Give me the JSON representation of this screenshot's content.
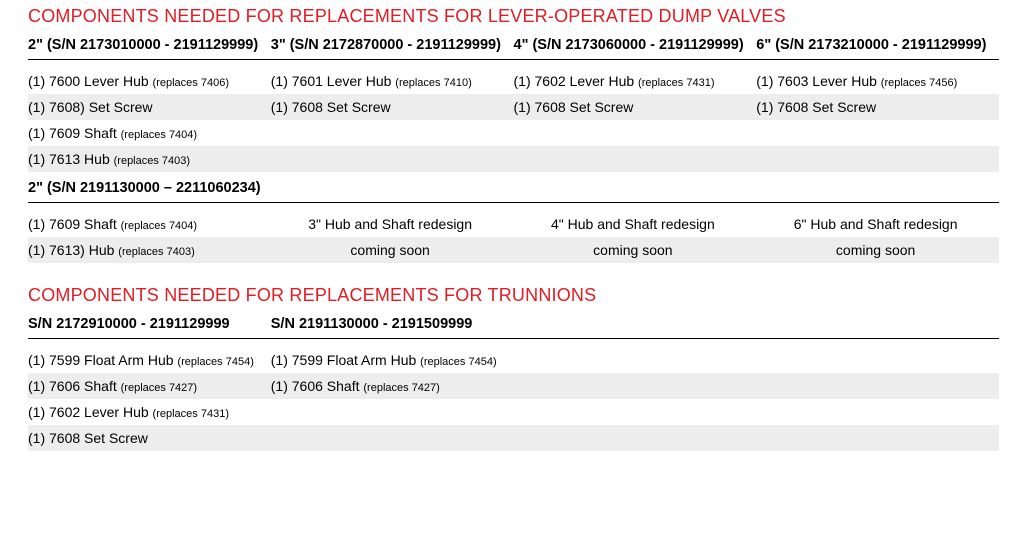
{
  "colors": {
    "title": "#e31b23",
    "border": "#000000",
    "alt_bg": "#ededed",
    "text": "#000000",
    "bg": "#ffffff"
  },
  "fonts": {
    "title_size": 18,
    "header_size": 14.5,
    "body_size": 14,
    "rep_size": 11
  },
  "section1": {
    "title": "COMPONENTS NEEDED FOR REPLACEMENTS FOR LEVER-OPERATED DUMP VALVES",
    "headers": [
      "2\" (S/N 2173010000 - 2191129999)",
      "3\" (S/N 2172870000 - 2191129999)",
      "4\" (S/N 2173060000 - 2191129999)",
      "6\" (S/N 2173210000 - 2191129999)"
    ],
    "rows": [
      [
        {
          "qty": "(1)",
          "name": "7600 Lever Hub",
          "rep": "(replaces 7406)"
        },
        {
          "qty": "(1)",
          "name": "7601 Lever Hub",
          "rep": "(replaces 7410)"
        },
        {
          "qty": "(1)",
          "name": "7602 Lever Hub",
          "rep": "(replaces 7431)"
        },
        {
          "qty": "(1)",
          "name": "7603 Lever Hub",
          "rep": "(replaces 7456)"
        }
      ],
      [
        {
          "qty": "(1)",
          "name": "7608) Set Screw",
          "rep": ""
        },
        {
          "qty": "(1)",
          "name": "7608 Set Screw",
          "rep": ""
        },
        {
          "qty": "(1)",
          "name": "7608 Set Screw",
          "rep": ""
        },
        {
          "qty": "(1)",
          "name": "7608 Set Screw",
          "rep": ""
        }
      ],
      [
        {
          "qty": "(1)",
          "name": "7609 Shaft",
          "rep": "(replaces 7404)"
        },
        null,
        null,
        null
      ],
      [
        {
          "qty": "(1)",
          "name": "7613 Hub",
          "rep": "(replaces 7403)"
        },
        null,
        null,
        null
      ]
    ],
    "subheader": "2\" (S/N 2191130000 – 2211060234)",
    "subrows": {
      "col1": [
        {
          "qty": "(1)",
          "name": "7609 Shaft",
          "rep": "(replaces 7404)"
        },
        {
          "qty": "(1)",
          "name": "7613) Hub",
          "rep": "(replaces 7403)"
        }
      ],
      "msgs": {
        "c2l1": "3\" Hub and Shaft redesign",
        "c2l2": "coming soon",
        "c3l1": "4\" Hub and Shaft redesign",
        "c3l2": "coming soon",
        "c4l1": "6\" Hub and Shaft redesign",
        "c4l2": "coming soon"
      }
    }
  },
  "section2": {
    "title": "COMPONENTS NEEDED FOR REPLACEMENTS FOR TRUNNIONS",
    "headers": [
      "S/N 2172910000 - 2191129999",
      "S/N 2191130000 - 2191509999"
    ],
    "rows": [
      [
        {
          "qty": "(1)",
          "name": "7599 Float Arm Hub",
          "rep": "(replaces 7454)"
        },
        {
          "qty": "(1)",
          "name": "7599 Float Arm Hub",
          "rep": "(replaces 7454)"
        }
      ],
      [
        {
          "qty": "(1)",
          "name": "7606 Shaft",
          "rep": "(replaces 7427)"
        },
        {
          "qty": "(1)",
          "name": "7606 Shaft",
          "rep": "(replaces 7427)"
        }
      ],
      [
        {
          "qty": "(1)",
          "name": "7602 Lever Hub",
          "rep": "(replaces 7431)"
        },
        null
      ],
      [
        {
          "qty": "(1)",
          "name": "7608 Set Screw",
          "rep": ""
        },
        null
      ]
    ]
  }
}
